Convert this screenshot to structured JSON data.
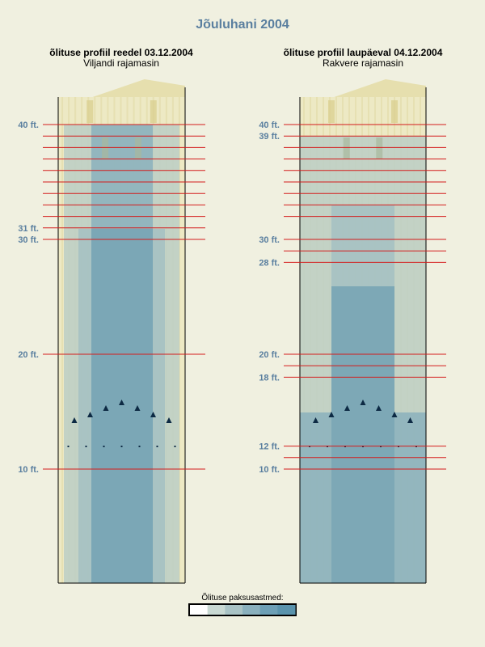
{
  "title": "Jõuluhani 2004",
  "legend_title": "Õlituse paksusastmed:",
  "colors": {
    "background": "#f0f0e0",
    "lane": "#ede9c4",
    "approach": "#e6dfae",
    "board_line": "#e3dcab",
    "dot": "#d9cf8f",
    "level1": "#bfcfc4",
    "level2": "#a7c1c2",
    "level3": "#8fb3bd",
    "level4": "#79a6b5",
    "level5": "#6a9fb2",
    "marker_line": "#d41c1c",
    "label": "#5a7f9f",
    "arrow": "#0d2a44"
  },
  "legend_colors": [
    "#ffffff",
    "#c9d9d3",
    "#a9c3c5",
    "#8ab0bd",
    "#6d9fb5",
    "#5a93ac"
  ],
  "profiles": [
    {
      "title": "õlituse profiil reedel 03.12.2004",
      "subtitle": "Viljandi rajamasin",
      "labels": [
        {
          "text": "40 ft.",
          "ft": 40
        },
        {
          "text": "31 ft.",
          "ft": 31
        },
        {
          "text": "30 ft.",
          "ft": 30
        },
        {
          "text": "20 ft.",
          "ft": 20
        },
        {
          "text": "10 ft.",
          "ft": 10
        }
      ]
    },
    {
      "title": "õlituse profiil laupäeval 04.12.2004",
      "subtitle": "Rakvere rajamasin",
      "labels": [
        {
          "text": "40 ft.",
          "ft": 40
        },
        {
          "text": "39 ft.",
          "ft": 39
        },
        {
          "text": "30 ft.",
          "ft": 30
        },
        {
          "text": "28 ft.",
          "ft": 28
        },
        {
          "text": "20 ft.",
          "ft": 20
        },
        {
          "text": "18 ft.",
          "ft": 18
        },
        {
          "text": "12 ft.",
          "ft": 12
        },
        {
          "text": "10 ft.",
          "ft": 10
        }
      ]
    }
  ]
}
